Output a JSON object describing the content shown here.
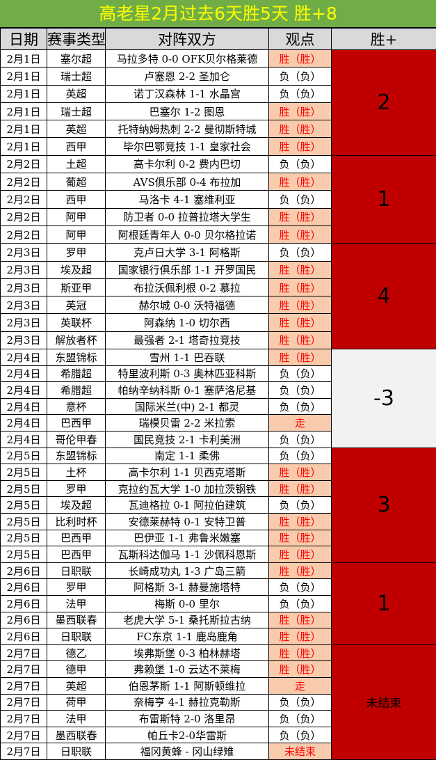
{
  "title": "高老星2月过去6天胜5天  胜+8",
  "headers": [
    "日期",
    "赛事类型",
    "对阵双方",
    "观点",
    "胜+"
  ],
  "colors": {
    "title_bg": "#70ad47",
    "title_text": "#ffff00",
    "win_bg": "#f8cbad",
    "win_text": "#ff0000",
    "group_red": "#c00000",
    "group_gray": "#f2f2f2"
  },
  "groups": [
    {
      "date": "2月1日",
      "score": "2",
      "color": "red",
      "rows": [
        [
          "塞尔超",
          "马拉多特 0-0 OFK贝尔格莱德",
          "胜（胜）"
        ],
        [
          "瑞士超",
          "卢塞恩 2-2 圣加仑",
          "负（负）"
        ],
        [
          "英超",
          "诺丁汉森林 1-1 水晶宫",
          "负（负）"
        ],
        [
          "瑞士超",
          "巴塞尔 1-2 图恩",
          "胜（胜）"
        ],
        [
          "英超",
          "托特纳姆热刺 2-2 曼彻斯特城",
          "胜（胜）"
        ],
        [
          "西甲",
          "毕尔巴鄂竞技 1-1 皇家社会",
          "胜（胜）"
        ]
      ]
    },
    {
      "date": "2月2日",
      "score": "1",
      "color": "red",
      "rows": [
        [
          "土超",
          "高卡尔利 0-2 费内巴切",
          "负（负）"
        ],
        [
          "葡超",
          "AVS俱乐部 0-4 布拉加",
          "胜（胜）"
        ],
        [
          "西甲",
          "马洛卡 4-1 塞维利亚",
          "负（负）"
        ],
        [
          "阿甲",
          "防卫者 0-0 拉普拉塔大学生",
          "胜（胜）"
        ],
        [
          "阿甲",
          "阿根廷青年人 0-0 贝尔格拉诺",
          "胜（胜）"
        ]
      ]
    },
    {
      "date": "2月3日",
      "score": "4",
      "color": "red",
      "rows": [
        [
          "罗甲",
          "克卢日大学 3-1 阿格斯",
          "负（负）"
        ],
        [
          "埃及超",
          "国家银行俱乐部 1-1 开罗国民",
          "胜（胜）"
        ],
        [
          "斯亚甲",
          "布拉沃佩利根 0-2 慕拉",
          "胜（胜）"
        ],
        [
          "英冠",
          "赫尔城 0-0 沃特福德",
          "胜（胜）"
        ],
        [
          "英联杯",
          "阿森纳 1-0 切尔西",
          "胜（胜）"
        ],
        [
          "解放者杯",
          "最强者 2-1 塔奇拉竞技",
          "胜（胜）"
        ]
      ]
    },
    {
      "date": "2月4日",
      "score": "-3",
      "color": "gray",
      "rows": [
        [
          "东盟锦标",
          "雪州 1-1 巴吞联",
          "胜（胜）"
        ],
        [
          "希腊超",
          "特里波利斯 0-3 奥林匹亚科斯",
          "负（负）"
        ],
        [
          "希腊超",
          "帕纳辛纳科斯 0-1 塞萨洛尼基",
          "负（负）"
        ],
        [
          "意杯",
          "国际米兰(中) 2-1 都灵",
          "负（负）"
        ],
        [
          "巴西甲",
          "瑞模贝雷 2-2 米拉索",
          "走"
        ],
        [
          "哥伦甲春",
          "国民竞技 2-1 卡利美洲",
          "负（负）"
        ]
      ]
    },
    {
      "date": "2月5日",
      "score": "3",
      "color": "red",
      "rows": [
        [
          "东盟锦标",
          "南定 1-1 柔佛",
          "负（负）"
        ],
        [
          "土杯",
          "高卡尔利 1-1 贝西克塔斯",
          "胜（胜）"
        ],
        [
          "罗甲",
          "克拉约瓦大学 1-0 加拉茨钢铁",
          "胜（胜）"
        ],
        [
          "埃及超",
          "瓦迪格拉 0-1 阿拉伯建筑",
          "负（负）"
        ],
        [
          "比利时杯",
          "安德莱赫特 0-1 安特卫普",
          "胜（胜）"
        ],
        [
          "巴西甲",
          "巴伊亚 1-1 弗鲁米嫩塞",
          "胜（胜）"
        ],
        [
          "巴西甲",
          "瓦斯科达伽马 1-1 沙佩科恩斯",
          "胜（胜）"
        ]
      ]
    },
    {
      "date": "2月6日",
      "score": "1",
      "color": "red",
      "rows": [
        [
          "日职联",
          "长崎成功丸 1-3 广岛三箭",
          "胜（胜）"
        ],
        [
          "罗甲",
          "阿格斯 3-1 赫曼施塔特",
          "负（负）"
        ],
        [
          "法甲",
          "梅斯 0-0 里尔",
          "负（负）"
        ],
        [
          "墨西联春",
          "老虎大学 5-1 桑托斯拉古纳",
          "胜（胜）"
        ],
        [
          "日职联",
          "FC东京 1-1 鹿岛鹿角",
          "胜（胜）"
        ]
      ]
    },
    {
      "date": "2月7日",
      "score": "未结束",
      "color": "red",
      "rows": [
        [
          "德乙",
          "埃弗斯堡 0-3 柏林赫塔",
          "胜（胜）"
        ],
        [
          "德甲",
          "弗赖堡 1-0 云达不莱梅",
          "胜（胜）"
        ],
        [
          "英超",
          "伯恩茅斯 1-1 阿斯顿维拉",
          "走"
        ],
        [
          "荷甲",
          "奈梅亨 4-1 赫拉克勒斯",
          "负（负）"
        ],
        [
          "法甲",
          "布雷斯特 2-0 洛里昂",
          "负（负）"
        ],
        [
          "墨西联春",
          "帕丘卡2-0华雷斯",
          "负（负）"
        ],
        [
          "日职联",
          "福冈黄蜂 - 冈山绿雉",
          "未结束"
        ]
      ]
    }
  ]
}
